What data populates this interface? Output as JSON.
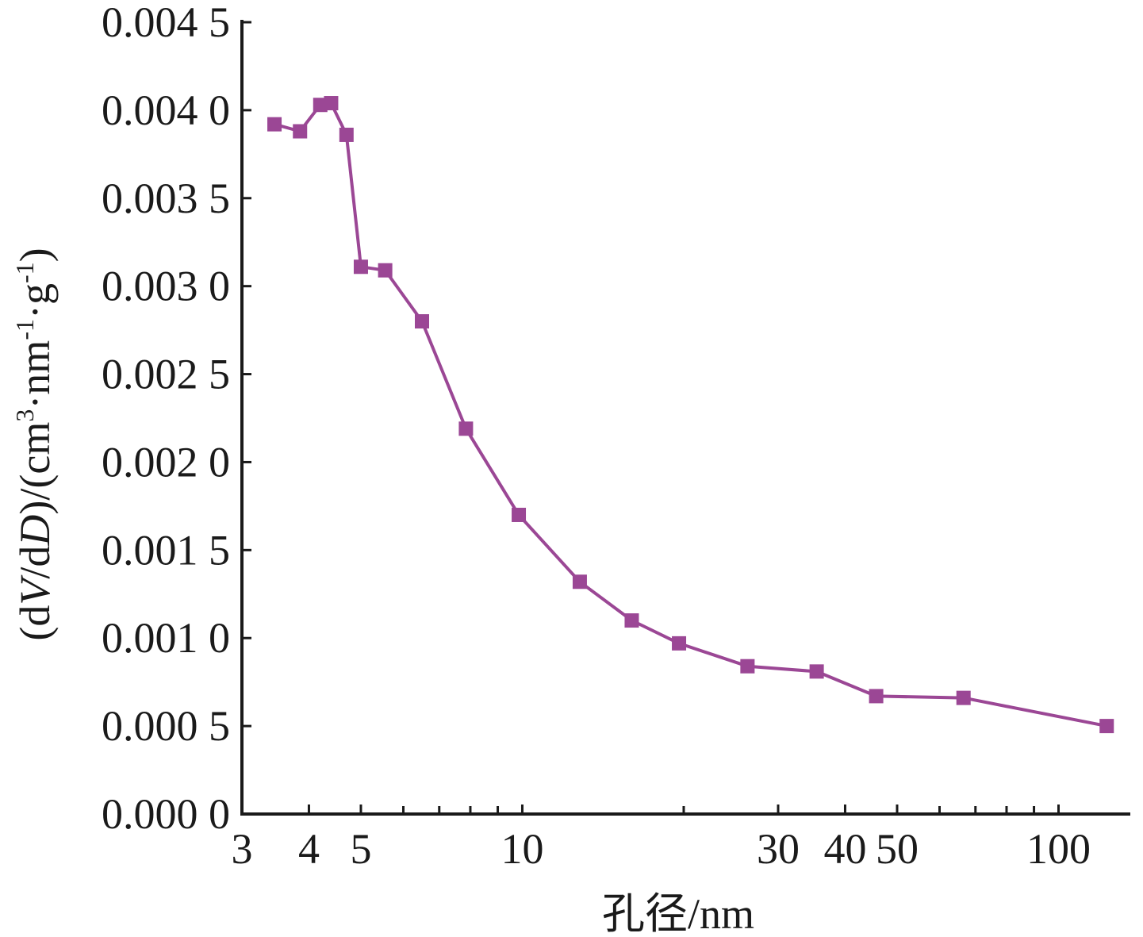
{
  "chart_data": {
    "type": "line",
    "title": "",
    "xlabel": "孔径/nm",
    "ylabel": "(dV/dD)/(cm3·nm-1·g-1)",
    "ylabel_parts": {
      "open": "(d",
      "v": "V",
      "slash_d": "/d",
      "d": "D",
      "close_open": ")/(cm",
      "sup3": "3",
      "dot_nm": "·nm",
      "sup_neg1": "-1",
      "dot_g": "·g",
      "sup_neg1_b": "-1",
      "close": ")"
    },
    "x_scale": "log",
    "xlim": [
      3,
      125
    ],
    "ylim": [
      0,
      0.0045
    ],
    "x_ticks": [
      3,
      4,
      5,
      10,
      30,
      40,
      50,
      100
    ],
    "x_tick_labels": [
      "3",
      "4",
      "5",
      "10",
      "30",
      "40",
      "50",
      "100"
    ],
    "x_minor_ticks": [
      6,
      7,
      8,
      9,
      20,
      60,
      70,
      80,
      90
    ],
    "y_ticks": [
      0,
      0.0005,
      0.001,
      0.0015,
      0.002,
      0.0025,
      0.003,
      0.0035,
      0.004,
      0.0045
    ],
    "y_tick_labels": [
      "0.000 0",
      "0.000 5",
      "0.001 0",
      "0.001 5",
      "0.002 0",
      "0.002 5",
      "0.003 0",
      "0.003 5",
      "0.004 0",
      "0.004 5"
    ],
    "grid": false,
    "legend": "none",
    "series": [
      {
        "color": "#9b4795",
        "marker": "square",
        "x": [
          3.45,
          3.85,
          4.2,
          4.4,
          4.7,
          5.0,
          5.55,
          6.5,
          7.85,
          9.85,
          12.8,
          16.0,
          19.6,
          26.3,
          35.4,
          45.7,
          66.5,
          123.0
        ],
        "y": [
          0.00392,
          0.00388,
          0.00403,
          0.00404,
          0.00386,
          0.00311,
          0.00309,
          0.0028,
          0.00219,
          0.0017,
          0.00132,
          0.0011,
          0.00097,
          0.00084,
          0.00081,
          0.00067,
          0.00066,
          0.0005
        ]
      }
    ]
  }
}
